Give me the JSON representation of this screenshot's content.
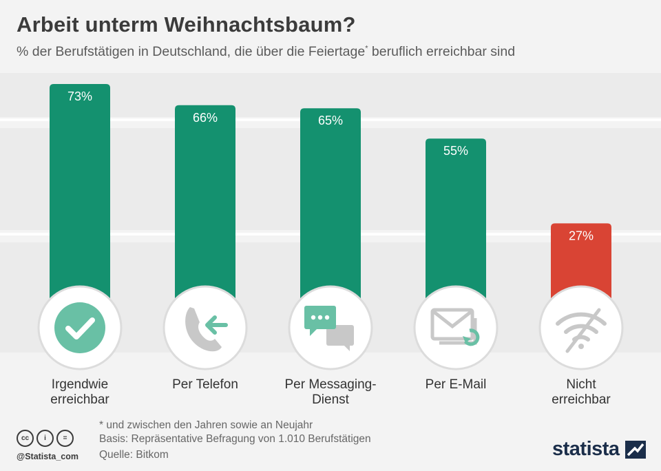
{
  "title": "Arbeit unterm Weihnachtsbaum?",
  "subtitle": "% der Berufstätigen in Deutschland, die über die Feiertage",
  "subtitle_mark": "*",
  "subtitle_end": " beruflich erreichbar sind",
  "colors": {
    "bar": "#14916f",
    "bar_highlight": "#d94434",
    "icon_green": "#69c0a5",
    "icon_gray": "#c8c8c8"
  },
  "chart_data": {
    "type": "bar",
    "categories": [
      [
        "Irgendwie",
        "erreichbar"
      ],
      [
        "Per Telefon"
      ],
      [
        "Per Messaging-",
        "Dienst"
      ],
      [
        "Per E-Mail"
      ],
      [
        "Nicht",
        "erreichbar"
      ]
    ],
    "values": [
      73,
      66,
      65,
      55,
      27
    ],
    "value_labels": [
      "73%",
      "66%",
      "65%",
      "55%",
      "27%"
    ],
    "unit": "%",
    "icons": [
      "check-icon",
      "phone-icon",
      "chat-icon",
      "email-icon",
      "no-wifi-icon"
    ],
    "highlight_index": 4,
    "ylim": [
      0,
      100
    ],
    "grid": false,
    "legend": "none"
  },
  "footnotes": {
    "note": "* und zwischen den Jahren sowie an Neujahr",
    "basis": "Basis: Repräsentative Befragung von 1.010 Berufstätigen",
    "source": "Quelle: Bitkom"
  },
  "branding": {
    "handle": "@Statista_com",
    "logo": "statista",
    "license_icons": [
      "cc",
      "i",
      "="
    ]
  }
}
